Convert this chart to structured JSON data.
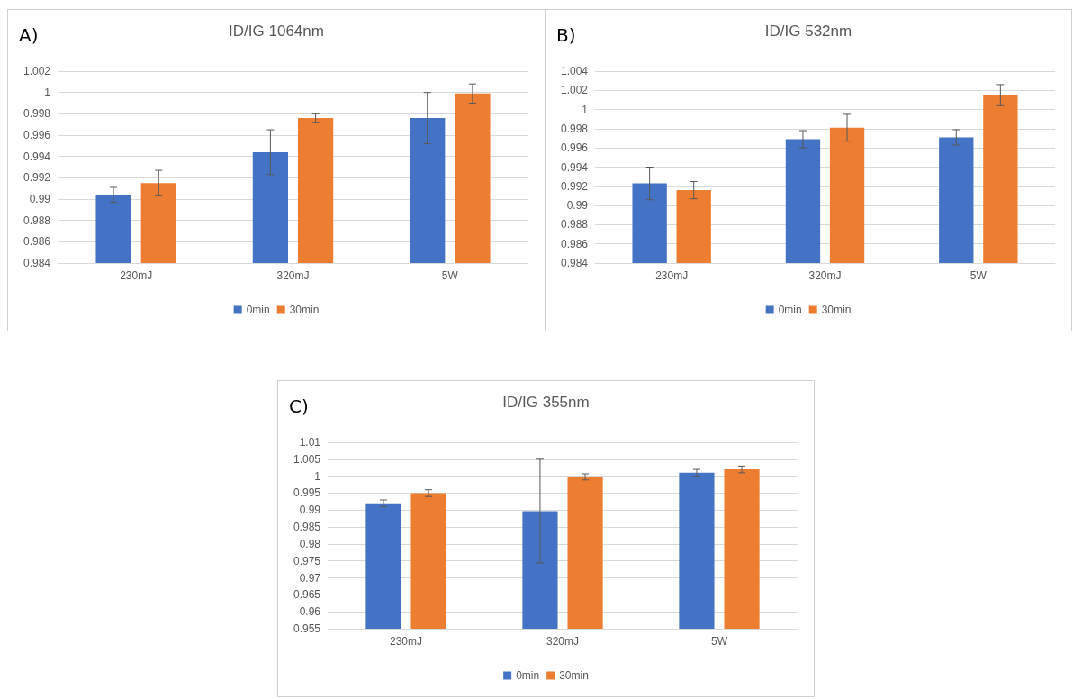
{
  "chart_data": [
    {
      "type": "bar",
      "title": "ID/IG 1064nm",
      "annotations": [
        "A)"
      ],
      "categories": [
        "230mJ",
        "320mJ",
        "5W"
      ],
      "series": [
        {
          "name": "0min",
          "color": "#4472c4",
          "values": [
            0.9904,
            0.9944,
            0.9976
          ],
          "errors": [
            0.0007,
            0.0021,
            0.0024
          ]
        },
        {
          "name": "30min",
          "color": "#ed7d31",
          "values": [
            0.9915,
            0.9976,
            0.9999
          ],
          "errors": [
            0.0012,
            0.0004,
            0.0009
          ]
        }
      ],
      "ylim": [
        0.984,
        1.002
      ],
      "yticks": [
        0.984,
        0.986,
        0.988,
        0.99,
        0.992,
        0.994,
        0.996,
        0.998,
        1,
        1.002
      ],
      "grid": "y",
      "legend": "bottom"
    },
    {
      "type": "bar",
      "title": "ID/IG 532nm",
      "annotations": [
        "B)"
      ],
      "categories": [
        "230mJ",
        "320mJ",
        "5W"
      ],
      "series": [
        {
          "name": "0min",
          "color": "#4472c4",
          "values": [
            0.9923,
            0.9969,
            0.9971
          ],
          "errors": [
            0.0017,
            0.0009,
            0.0008
          ]
        },
        {
          "name": "30min",
          "color": "#ed7d31",
          "values": [
            0.9916,
            0.9981,
            1.0015
          ],
          "errors": [
            0.0009,
            0.0014,
            0.0011
          ]
        }
      ],
      "ylim": [
        0.984,
        1.004
      ],
      "yticks": [
        0.984,
        0.986,
        0.988,
        0.99,
        0.992,
        0.994,
        0.996,
        0.998,
        1,
        1.002,
        1.004
      ],
      "grid": "y",
      "legend": "bottom"
    },
    {
      "type": "bar",
      "title": "ID/IG 355nm",
      "annotations": [
        "C)"
      ],
      "categories": [
        "230mJ",
        "320mJ",
        "5W"
      ],
      "series": [
        {
          "name": "0min",
          "color": "#4472c4",
          "values": [
            0.992,
            0.9897,
            1.001
          ],
          "errors": [
            0.001,
            0.0153,
            0.001
          ]
        },
        {
          "name": "30min",
          "color": "#ed7d31",
          "values": [
            0.995,
            0.9998,
            1.002
          ],
          "errors": [
            0.001,
            0.0009,
            0.001
          ]
        }
      ],
      "ylim": [
        0.955,
        1.01
      ],
      "yticks": [
        0.955,
        0.96,
        0.965,
        0.97,
        0.975,
        0.98,
        0.985,
        0.99,
        0.995,
        1,
        1.005,
        1.01
      ],
      "grid": "y",
      "legend": "bottom"
    }
  ]
}
